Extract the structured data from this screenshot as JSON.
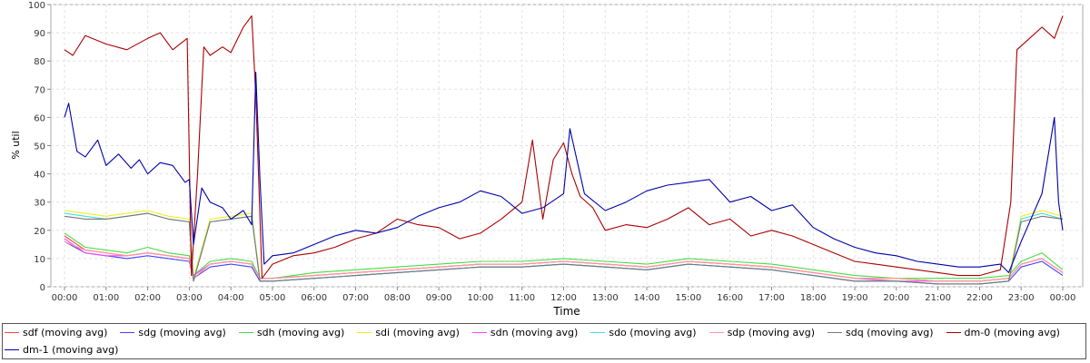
{
  "chart_data": {
    "type": "line",
    "title": "",
    "xlabel": "Time",
    "ylabel": "% util",
    "ylim": [
      0,
      100
    ],
    "yticks": [
      0,
      10,
      20,
      30,
      40,
      50,
      60,
      70,
      80,
      90,
      100
    ],
    "xlim": [
      0,
      24
    ],
    "xticks": [
      {
        "x": 0,
        "label": "00:00"
      },
      {
        "x": 1,
        "label": "01:00"
      },
      {
        "x": 2,
        "label": "02:00"
      },
      {
        "x": 3,
        "label": "03:00"
      },
      {
        "x": 4,
        "label": "04:00"
      },
      {
        "x": 5,
        "label": "05:00"
      },
      {
        "x": 6,
        "label": "06:00"
      },
      {
        "x": 7,
        "label": "07:00"
      },
      {
        "x": 8,
        "label": "08:00"
      },
      {
        "x": 9,
        "label": "09:00"
      },
      {
        "x": 10,
        "label": "10:00"
      },
      {
        "x": 11,
        "label": "11:00"
      },
      {
        "x": 12,
        "label": "12:00"
      },
      {
        "x": 13,
        "label": "13:00"
      },
      {
        "x": 14,
        "label": "14:00"
      },
      {
        "x": 15,
        "label": "15:00"
      },
      {
        "x": 16,
        "label": "16:00"
      },
      {
        "x": 17,
        "label": "17:00"
      },
      {
        "x": 18,
        "label": "18:00"
      },
      {
        "x": 19,
        "label": "19:00"
      },
      {
        "x": 20,
        "label": "20:00"
      },
      {
        "x": 21,
        "label": "21:00"
      },
      {
        "x": 22,
        "label": "22:00"
      },
      {
        "x": 23,
        "label": "23:00"
      },
      {
        "x": 24,
        "label": "00:00"
      }
    ],
    "grid": true,
    "legend_position": "bottom",
    "series": [
      {
        "name": "sdf (moving avg)",
        "color": "#ff4444",
        "x": [
          0,
          0.5,
          1,
          1.5,
          2,
          2.5,
          3,
          3.1,
          3.5,
          4,
          4.5,
          4.7,
          5,
          6,
          7,
          8,
          9,
          10,
          11,
          12,
          13,
          14,
          15,
          16,
          17,
          18,
          19,
          20,
          21,
          22,
          22.7,
          23,
          23.5,
          24
        ],
        "y": [
          18,
          13,
          12,
          11,
          12,
          11,
          10,
          4,
          8,
          9,
          8,
          3,
          3,
          4,
          5,
          6,
          7,
          8,
          8,
          9,
          8,
          7,
          9,
          8,
          7,
          5,
          3,
          3,
          2,
          2,
          3,
          8,
          10,
          5
        ]
      },
      {
        "name": "sdg (moving avg)",
        "color": "#4444ff",
        "x": [
          0,
          0.5,
          1,
          1.5,
          2,
          2.5,
          3,
          3.1,
          3.5,
          4,
          4.5,
          4.7,
          5,
          6,
          7,
          8,
          9,
          10,
          11,
          12,
          13,
          14,
          15,
          16,
          17,
          18,
          19,
          20,
          21,
          22,
          22.7,
          23,
          23.5,
          24
        ],
        "y": [
          16,
          12,
          11,
          10,
          11,
          10,
          9,
          3,
          7,
          8,
          7,
          2,
          2,
          3,
          4,
          5,
          6,
          7,
          7,
          8,
          7,
          6,
          8,
          7,
          6,
          4,
          2,
          2,
          1,
          1,
          2,
          7,
          9,
          4
        ]
      },
      {
        "name": "sdh (moving avg)",
        "color": "#44dd44",
        "x": [
          0,
          0.5,
          1,
          1.5,
          2,
          2.5,
          3,
          3.1,
          3.5,
          4,
          4.5,
          4.7,
          5,
          6,
          7,
          8,
          9,
          10,
          11,
          12,
          13,
          14,
          15,
          16,
          17,
          18,
          19,
          20,
          21,
          22,
          22.7,
          23,
          23.5,
          24
        ],
        "y": [
          19,
          14,
          13,
          12,
          14,
          12,
          11,
          4,
          9,
          10,
          9,
          3,
          3,
          5,
          6,
          7,
          8,
          9,
          9,
          10,
          9,
          8,
          10,
          9,
          8,
          6,
          4,
          3,
          3,
          3,
          4,
          9,
          12,
          6
        ]
      },
      {
        "name": "sdi (moving avg)",
        "color": "#eeee22",
        "x": [
          0,
          0.5,
          1,
          1.5,
          2,
          2.5,
          3,
          3.1,
          3.5,
          4,
          4.5,
          4.7,
          5,
          6,
          7,
          8,
          9,
          10,
          11,
          12,
          13,
          14,
          15,
          16,
          17,
          18,
          19,
          20,
          21,
          22,
          22.7,
          23,
          23.5,
          24
        ],
        "y": [
          27,
          26,
          25,
          26,
          27,
          25,
          24,
          3,
          24,
          25,
          26,
          3,
          3,
          4,
          5,
          6,
          7,
          8,
          8,
          9,
          8,
          7,
          9,
          8,
          7,
          5,
          3,
          3,
          2,
          2,
          3,
          25,
          27,
          25
        ]
      },
      {
        "name": "sdn (moving avg)",
        "color": "#ff44ff",
        "x": [
          0,
          0.5,
          1,
          1.5,
          2,
          2.5,
          3,
          3.1,
          3.5,
          4,
          4.5,
          4.7,
          5,
          6,
          7,
          8,
          9,
          10,
          11,
          12,
          13,
          14,
          15,
          16,
          17,
          18,
          19,
          20,
          21,
          22,
          22.7,
          23,
          23.5,
          24
        ],
        "y": [
          17,
          12,
          11,
          11,
          12,
          11,
          10,
          4,
          8,
          9,
          8,
          3,
          3,
          4,
          5,
          6,
          7,
          8,
          8,
          9,
          8,
          7,
          9,
          8,
          7,
          5,
          3,
          2,
          2,
          2,
          3,
          8,
          10,
          5
        ]
      },
      {
        "name": "sdo (moving avg)",
        "color": "#44dddd",
        "x": [
          0,
          0.5,
          1,
          1.5,
          2,
          2.5,
          3,
          3.1,
          3.5,
          4,
          4.5,
          4.7,
          5,
          6,
          7,
          8,
          9,
          10,
          11,
          12,
          13,
          14,
          15,
          16,
          17,
          18,
          19,
          20,
          21,
          22,
          22.7,
          23,
          23.5,
          24
        ],
        "y": [
          26,
          25,
          24,
          25,
          26,
          24,
          23,
          2,
          23,
          24,
          25,
          2,
          2,
          3,
          4,
          5,
          6,
          7,
          7,
          8,
          7,
          6,
          8,
          7,
          6,
          4,
          2,
          2,
          1,
          1,
          2,
          24,
          26,
          24
        ]
      },
      {
        "name": "sdp (moving avg)",
        "color": "#ff9999",
        "x": [
          0,
          0.5,
          1,
          1.5,
          2,
          2.5,
          3,
          3.1,
          3.5,
          4,
          4.5,
          4.7,
          5,
          6,
          7,
          8,
          9,
          10,
          11,
          12,
          13,
          14,
          15,
          16,
          17,
          18,
          19,
          20,
          21,
          22,
          22.7,
          23,
          23.5,
          24
        ],
        "y": [
          16,
          13,
          12,
          11,
          12,
          11,
          10,
          3,
          8,
          9,
          8,
          3,
          3,
          4,
          5,
          6,
          7,
          8,
          8,
          9,
          8,
          7,
          9,
          8,
          7,
          5,
          3,
          3,
          2,
          2,
          3,
          8,
          10,
          5
        ]
      },
      {
        "name": "sdq (moving avg)",
        "color": "#777777",
        "x": [
          0,
          0.5,
          1,
          1.5,
          2,
          2.5,
          3,
          3.1,
          3.5,
          4,
          4.5,
          4.7,
          5,
          6,
          7,
          8,
          9,
          10,
          11,
          12,
          13,
          14,
          15,
          16,
          17,
          18,
          19,
          20,
          21,
          22,
          22.7,
          23,
          23.5,
          24
        ],
        "y": [
          25,
          24,
          24,
          25,
          26,
          24,
          23,
          2,
          23,
          24,
          25,
          2,
          2,
          3,
          4,
          5,
          6,
          7,
          7,
          8,
          7,
          6,
          8,
          7,
          6,
          4,
          2,
          2,
          1,
          1,
          2,
          23,
          25,
          24
        ]
      },
      {
        "name": "dm-0 (moving avg)",
        "color": "#aa0000",
        "x": [
          0,
          0.2,
          0.5,
          1,
          1.5,
          2,
          2.3,
          2.6,
          2.95,
          3.05,
          3.2,
          3.35,
          3.5,
          3.8,
          4,
          4.3,
          4.5,
          4.6,
          4.75,
          5,
          5.5,
          6,
          6.5,
          7,
          7.5,
          8,
          8.5,
          9,
          9.5,
          10,
          10.5,
          11,
          11.25,
          11.5,
          11.75,
          12,
          12.2,
          12.4,
          12.7,
          13,
          13.5,
          14,
          14.5,
          15,
          15.5,
          16,
          16.5,
          17,
          17.5,
          18,
          18.5,
          19,
          19.5,
          20,
          20.5,
          21,
          21.5,
          22,
          22.5,
          22.75,
          22.9,
          23.2,
          23.5,
          23.8,
          24
        ],
        "y": [
          84,
          82,
          89,
          86,
          84,
          88,
          90,
          84,
          88,
          4,
          40,
          85,
          82,
          85,
          83,
          92,
          96,
          68,
          3,
          8,
          11,
          12,
          14,
          17,
          19,
          24,
          22,
          21,
          17,
          19,
          24,
          30,
          52,
          24,
          45,
          51,
          40,
          32,
          28,
          20,
          22,
          21,
          24,
          28,
          22,
          24,
          18,
          20,
          18,
          15,
          12,
          9,
          8,
          7,
          6,
          5,
          4,
          4,
          6,
          30,
          84,
          88,
          92,
          88,
          96
        ]
      },
      {
        "name": "dm-1 (moving avg)",
        "color": "#0000aa",
        "x": [
          0,
          0.1,
          0.3,
          0.5,
          0.8,
          1,
          1.3,
          1.6,
          1.8,
          2,
          2.3,
          2.6,
          2.9,
          3.0,
          3.1,
          3.3,
          3.5,
          3.8,
          4,
          4.3,
          4.5,
          4.6,
          4.7,
          4.8,
          5,
          5.5,
          6,
          6.5,
          7,
          7.5,
          8,
          8.5,
          9,
          9.5,
          10,
          10.5,
          11,
          11.5,
          12,
          12.15,
          12.5,
          13,
          13.5,
          14,
          14.5,
          15,
          15.5,
          16,
          16.5,
          17,
          17.5,
          18,
          18.5,
          19,
          19.5,
          20,
          20.5,
          21,
          21.5,
          22,
          22.5,
          22.7,
          23,
          23.5,
          23.8,
          23.9,
          24
        ],
        "y": [
          60,
          65,
          48,
          46,
          52,
          43,
          47,
          42,
          45,
          40,
          44,
          43,
          37,
          38,
          15,
          35,
          30,
          28,
          24,
          27,
          22,
          76,
          38,
          8,
          11,
          12,
          15,
          18,
          20,
          19,
          21,
          25,
          28,
          30,
          34,
          32,
          26,
          28,
          33,
          56,
          33,
          27,
          30,
          34,
          36,
          37,
          38,
          30,
          32,
          27,
          29,
          21,
          17,
          14,
          12,
          11,
          9,
          8,
          7,
          7,
          8,
          5,
          16,
          33,
          60,
          30,
          20
        ]
      }
    ]
  }
}
